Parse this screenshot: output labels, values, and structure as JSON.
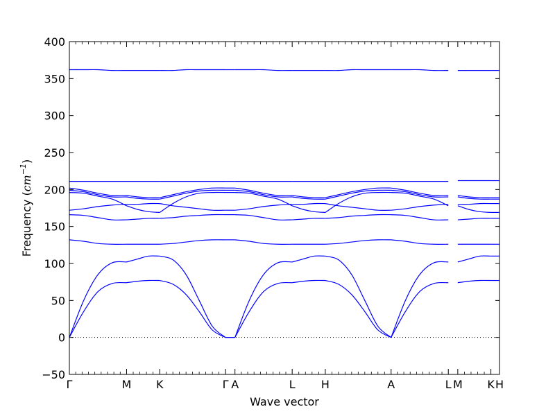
{
  "chart_data": {
    "type": "line",
    "title": "",
    "xlabel": "Wave vector",
    "ylabel": {
      "prefix": "Frequency (",
      "var": "cm",
      "exp": "−1",
      "suffix": ")"
    },
    "ylim": [
      -50,
      400
    ],
    "yticks": [
      -50,
      0,
      50,
      100,
      150,
      200,
      250,
      300,
      350,
      400
    ],
    "ytick_labels": [
      "−50",
      "0",
      "50",
      "100",
      "150",
      "200",
      "250",
      "300",
      "350",
      "400"
    ],
    "x_points": [
      {
        "label": "Γ",
        "x": 0.0
      },
      {
        "label": "M",
        "x": 0.133
      },
      {
        "label": "K",
        "x": 0.21
      },
      {
        "label": "Γ",
        "x": 0.363
      },
      {
        "label": "A",
        "x": 0.385
      },
      {
        "label": "L",
        "x": 0.518
      },
      {
        "label": "H",
        "x": 0.595
      },
      {
        "label": "A",
        "x": 0.748
      },
      {
        "label": "L",
        "x": 0.881
      },
      {
        "label": "M",
        "x": 0.903
      },
      {
        "label": "K",
        "x": 0.98
      },
      {
        "label": "H",
        "x": 1.0
      }
    ],
    "xlim": [
      0,
      1
    ],
    "zero_line": {
      "y": 0,
      "style": "dotted"
    },
    "line_color": "#0000ff",
    "segments": [
      {
        "from": "Γ",
        "to": "M",
        "x": [
          0,
          0.133
        ],
        "bands": [
          [
            0,
            50,
            85,
            101,
            102
          ],
          [
            0,
            35,
            62,
            73,
            74
          ],
          [
            132,
            130,
            127,
            126,
            126
          ],
          [
            166,
            165,
            162,
            159,
            159
          ],
          [
            172,
            174,
            177,
            179,
            180
          ],
          [
            196,
            195,
            191,
            187,
            178
          ],
          [
            199,
            197,
            193,
            190,
            190
          ],
          [
            202,
            199,
            195,
            192,
            192
          ],
          [
            211,
            211,
            211,
            211,
            211
          ],
          [
            362,
            362,
            362,
            361,
            361
          ]
        ]
      },
      {
        "from": "M",
        "to": "K",
        "x": [
          0.133,
          0.21
        ],
        "bands": [
          [
            102,
            106,
            110,
            110
          ],
          [
            74,
            76,
            77,
            77
          ],
          [
            126,
            126,
            126,
            126
          ],
          [
            159,
            160,
            161,
            161
          ],
          [
            180,
            180,
            181,
            181
          ],
          [
            178,
            173,
            170,
            169
          ],
          [
            190,
            188,
            187,
            187
          ],
          [
            192,
            190,
            189,
            189
          ],
          [
            211,
            211,
            211,
            211
          ],
          [
            361,
            361,
            361,
            361
          ]
        ]
      },
      {
        "from": "K",
        "to": "Γ",
        "x": [
          0.21,
          0.363
        ],
        "bands": [
          [
            110,
            105,
            85,
            50,
            15,
            0
          ],
          [
            77,
            72,
            58,
            35,
            10,
            0
          ],
          [
            126,
            127,
            129,
            131,
            132,
            132
          ],
          [
            161,
            162,
            164,
            165,
            166,
            166
          ],
          [
            181,
            178,
            176,
            174,
            172,
            172
          ],
          [
            169,
            181,
            190,
            195,
            196,
            196
          ],
          [
            187,
            191,
            195,
            198,
            199,
            199
          ],
          [
            189,
            193,
            197,
            200,
            202,
            202
          ],
          [
            211,
            211,
            211,
            211,
            211,
            211
          ],
          [
            361,
            361,
            362,
            362,
            362,
            362
          ]
        ]
      },
      {
        "from": "Γ",
        "to": "A",
        "x": [
          0.363,
          0.385
        ],
        "bands": [
          [
            0,
            0
          ],
          [
            0,
            0
          ],
          [
            132,
            132
          ],
          [
            166,
            166
          ],
          [
            172,
            172
          ],
          [
            196,
            196
          ],
          [
            199,
            199
          ],
          [
            202,
            202
          ],
          [
            211,
            211
          ],
          [
            362,
            362
          ]
        ]
      },
      {
        "from": "A",
        "to": "L",
        "x": [
          0.385,
          0.518
        ],
        "bands": [
          [
            0,
            50,
            85,
            101,
            102
          ],
          [
            0,
            35,
            62,
            73,
            74
          ],
          [
            132,
            130,
            127,
            126,
            126
          ],
          [
            166,
            165,
            162,
            159,
            159
          ],
          [
            172,
            174,
            177,
            179,
            180
          ],
          [
            196,
            195,
            191,
            187,
            178
          ],
          [
            199,
            197,
            193,
            190,
            190
          ],
          [
            202,
            199,
            195,
            192,
            192
          ],
          [
            211,
            211,
            211,
            211,
            211
          ],
          [
            362,
            362,
            362,
            361,
            361
          ]
        ]
      },
      {
        "from": "L",
        "to": "H",
        "x": [
          0.518,
          0.595
        ],
        "bands": [
          [
            102,
            106,
            110,
            110
          ],
          [
            74,
            76,
            77,
            77
          ],
          [
            126,
            126,
            126,
            126
          ],
          [
            159,
            160,
            161,
            161
          ],
          [
            180,
            180,
            181,
            181
          ],
          [
            178,
            173,
            170,
            169
          ],
          [
            190,
            188,
            187,
            187
          ],
          [
            192,
            190,
            189,
            189
          ],
          [
            211,
            211,
            211,
            211
          ],
          [
            361,
            361,
            361,
            361
          ]
        ]
      },
      {
        "from": "H",
        "to": "A",
        "x": [
          0.595,
          0.748
        ],
        "bands": [
          [
            110,
            105,
            85,
            50,
            15,
            0
          ],
          [
            77,
            72,
            58,
            35,
            10,
            0
          ],
          [
            126,
            127,
            129,
            131,
            132,
            132
          ],
          [
            161,
            162,
            164,
            165,
            166,
            166
          ],
          [
            181,
            178,
            176,
            174,
            172,
            172
          ],
          [
            169,
            181,
            190,
            195,
            196,
            196
          ],
          [
            187,
            191,
            195,
            198,
            199,
            199
          ],
          [
            189,
            193,
            197,
            200,
            202,
            202
          ],
          [
            211,
            211,
            211,
            211,
            211,
            211
          ],
          [
            361,
            361,
            362,
            362,
            362,
            362
          ]
        ]
      },
      {
        "from": "A",
        "to": "L",
        "x": [
          0.748,
          0.881
        ],
        "bands": [
          [
            0,
            50,
            85,
            101,
            102
          ],
          [
            0,
            35,
            62,
            73,
            74
          ],
          [
            132,
            130,
            127,
            126,
            126
          ],
          [
            166,
            165,
            162,
            159,
            159
          ],
          [
            172,
            174,
            177,
            179,
            180
          ],
          [
            196,
            195,
            191,
            187,
            178
          ],
          [
            199,
            197,
            193,
            190,
            190
          ],
          [
            202,
            199,
            195,
            192,
            192
          ],
          [
            211,
            211,
            211,
            211,
            211
          ],
          [
            362,
            362,
            362,
            361,
            361
          ]
        ]
      },
      {
        "from": "M",
        "to": "K",
        "x": [
          0.903,
          0.98
        ],
        "bands": [
          [
            102,
            106,
            110,
            110
          ],
          [
            74,
            76,
            77,
            77
          ],
          [
            126,
            126,
            126,
            126
          ],
          [
            159,
            160,
            161,
            161
          ],
          [
            180,
            180,
            181,
            181
          ],
          [
            178,
            173,
            170,
            169
          ],
          [
            190,
            188,
            187,
            187
          ],
          [
            192,
            190,
            189,
            189
          ],
          [
            212,
            212,
            212,
            212
          ],
          [
            361,
            361,
            361,
            361
          ]
        ]
      },
      {
        "from": "K",
        "to": "H",
        "x": [
          0.98,
          1.0
        ],
        "bands": [
          [
            110,
            110
          ],
          [
            77,
            77
          ],
          [
            126,
            126
          ],
          [
            161,
            161
          ],
          [
            181,
            181
          ],
          [
            169,
            169
          ],
          [
            187,
            187
          ],
          [
            189,
            189
          ],
          [
            212,
            212
          ],
          [
            361,
            361
          ]
        ]
      }
    ]
  }
}
